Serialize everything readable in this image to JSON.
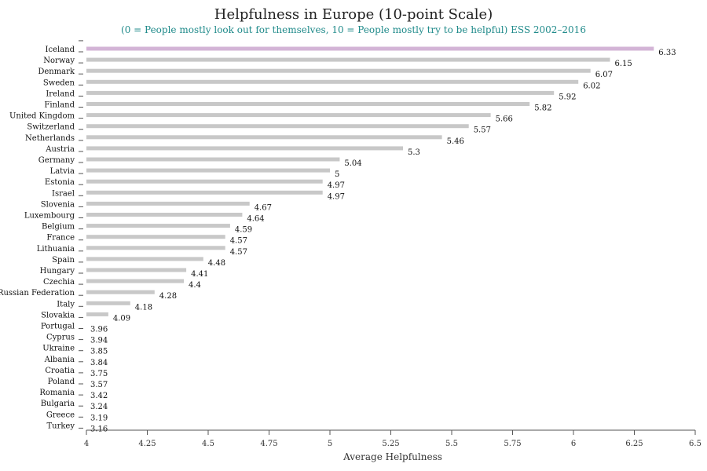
{
  "chart_data": {
    "type": "bar",
    "orientation": "horizontal",
    "title": "Helpfulness in Europe (10-point Scale)",
    "subtitle": "(0 = People mostly look out for themselves, 10 = People mostly try to be helpful) ESS 2002–2016",
    "xlabel": "Average Helpfulness",
    "ylabel": "",
    "xlim": [
      4,
      6.5
    ],
    "xticks": [
      4,
      4.25,
      4.5,
      4.75,
      5,
      5.25,
      5.5,
      5.75,
      6,
      6.25,
      6.5
    ],
    "xtick_labels": [
      "4",
      "4.25",
      "4.5",
      "4.75",
      "5",
      "5.25",
      "5.5",
      "5.75",
      "6",
      "6.25",
      "6.5"
    ],
    "grid": false,
    "categories": [
      "Iceland",
      "Norway",
      "Denmark",
      "Sweden",
      "Ireland",
      "Finland",
      "United Kingdom",
      "Switzerland",
      "Netherlands",
      "Austria",
      "Germany",
      "Latvia",
      "Estonia",
      "Israel",
      "Slovenia",
      "Luxembourg",
      "Belgium",
      "France",
      "Lithuania",
      "Spain",
      "Hungary",
      "Czechia",
      "Russian Federation",
      "Italy",
      "Slovakia",
      "Portugal",
      "Cyprus",
      "Ukraine",
      "Albania",
      "Croatia",
      "Poland",
      "Romania",
      "Bulgaria",
      "Greece",
      "Turkey"
    ],
    "values": [
      6.33,
      6.15,
      6.07,
      6.02,
      5.92,
      5.82,
      5.66,
      5.57,
      5.46,
      5.3,
      5.04,
      5,
      4.97,
      4.97,
      4.67,
      4.64,
      4.59,
      4.57,
      4.57,
      4.48,
      4.41,
      4.4,
      4.28,
      4.18,
      4.09,
      3.96,
      3.94,
      3.85,
      3.84,
      3.75,
      3.57,
      3.42,
      3.24,
      3.19,
      3.16
    ],
    "value_labels": [
      "6.33",
      "6.15",
      "6.07",
      "6.02",
      "5.92",
      "5.82",
      "5.66",
      "5.57",
      "5.46",
      "5.3",
      "5.04",
      "5",
      "4.97",
      "4.97",
      "4.67",
      "4.64",
      "4.59",
      "4.57",
      "4.57",
      "4.48",
      "4.41",
      "4.4",
      "4.28",
      "4.18",
      "4.09",
      "3.96",
      "3.94",
      "3.85",
      "3.84",
      "3.75",
      "3.57",
      "3.42",
      "3.24",
      "3.19",
      "3.16"
    ],
    "colors": {
      "bar": "#c8c8c8",
      "highlight_bar": "#d3b4d6",
      "axis": "#555555",
      "subtitle": "#1f8a8a"
    },
    "highlight_category": "Iceland"
  }
}
